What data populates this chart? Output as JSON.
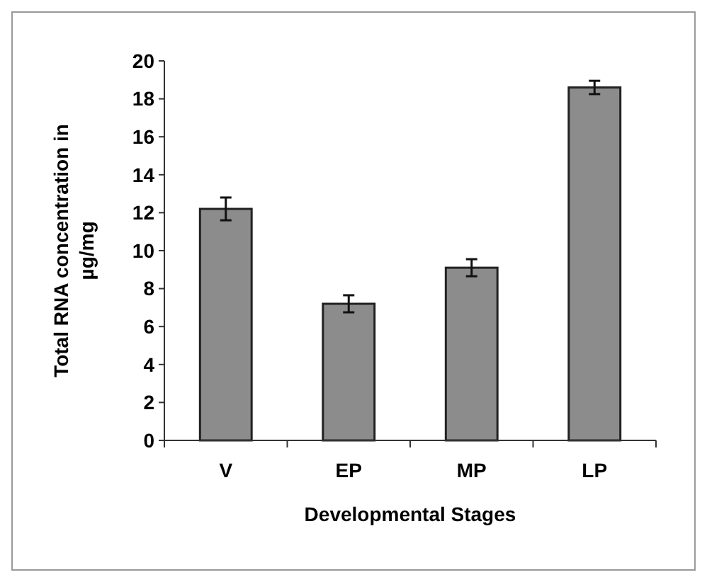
{
  "chart_data": {
    "type": "bar",
    "xlabel": "Developmental Stages",
    "ylabel": "Total RNA concentration in µg/mg",
    "categories": [
      "V",
      "EP",
      "MP",
      "LP"
    ],
    "values": [
      12.2,
      7.2,
      9.1,
      18.6
    ],
    "errors": [
      0.6,
      0.45,
      0.45,
      0.35
    ],
    "color": "#8c8c8c",
    "ylim": [
      0,
      20
    ],
    "yticks": [
      0,
      2,
      4,
      6,
      8,
      10,
      12,
      14,
      16,
      18,
      20
    ],
    "grid": false
  }
}
